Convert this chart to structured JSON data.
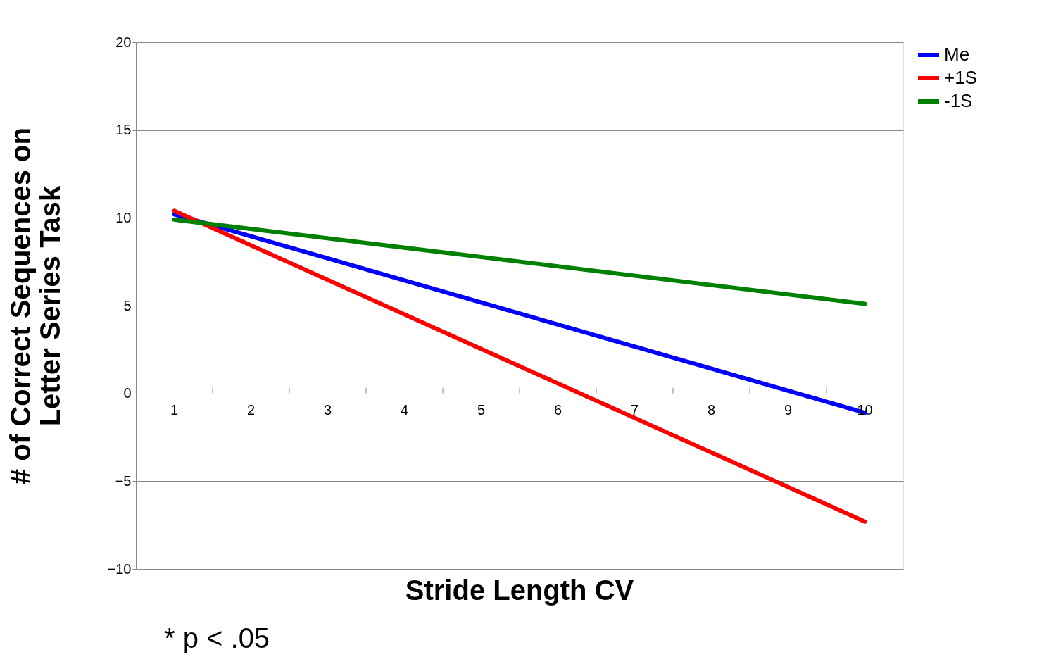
{
  "chart_data": {
    "type": "line",
    "xlabel": "Stride Length CV",
    "ylabel": "# of Correct Sequences on\nLetter Series Task",
    "categories": [
      "1",
      "2",
      "3",
      "4",
      "5",
      "6",
      "7",
      "8",
      "9",
      "10"
    ],
    "series": [
      {
        "name": "Me",
        "color": "#0000ff",
        "values": [
          10.2,
          null,
          null,
          null,
          null,
          null,
          null,
          null,
          null,
          -1.1
        ]
      },
      {
        "name": "+1S",
        "color": "#ff0000",
        "values": [
          10.4,
          null,
          null,
          null,
          null,
          null,
          null,
          null,
          null,
          -7.3
        ]
      },
      {
        "name": "-1S",
        "color": "#008000",
        "values": [
          9.9,
          null,
          null,
          null,
          null,
          null,
          null,
          null,
          null,
          5.1
        ]
      }
    ],
    "ylim": [
      -10,
      20
    ],
    "yticks": [
      -10,
      -5,
      0,
      5,
      10,
      15,
      20
    ],
    "grid": "y",
    "legend": "right",
    "marker": "none",
    "line_style": "solid",
    "annotations": [
      "* p < .05"
    ]
  }
}
